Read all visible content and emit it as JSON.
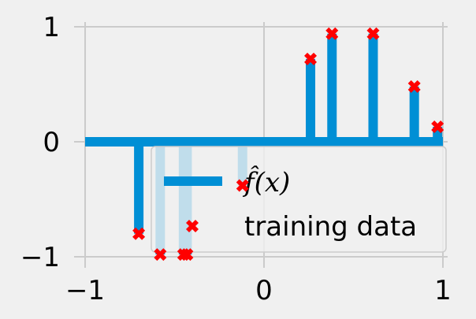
{
  "chart_data": {
    "type": "stem",
    "x_ticks": [
      "−1",
      "0",
      "1"
    ],
    "y_ticks": [
      "−1",
      "0",
      "1"
    ],
    "xlim": [
      -1,
      1
    ],
    "ylim": [
      -1,
      1
    ],
    "grid": true,
    "legend_placement": "lower-right",
    "colors": {
      "background": "#f0f0f0",
      "grid": "#cbcbcb",
      "stem": "#008fd5",
      "marker": "#ff0000"
    },
    "series": [
      {
        "name": "f̂(x)",
        "legend_math": "f̂(x)",
        "kind": "stem",
        "points": [
          {
            "x": -0.7,
            "y": -0.8
          },
          {
            "x": -0.58,
            "y": -0.98
          },
          {
            "x": -0.45,
            "y": -0.98
          },
          {
            "x": -0.43,
            "y": -0.98
          },
          {
            "x": -0.12,
            "y": -0.38
          },
          {
            "x": 0.26,
            "y": 0.72
          },
          {
            "x": 0.38,
            "y": 0.94
          },
          {
            "x": 0.61,
            "y": 0.94
          },
          {
            "x": 0.84,
            "y": 0.48
          },
          {
            "x": 0.97,
            "y": 0.13
          }
        ]
      },
      {
        "name": "training data",
        "kind": "scatter",
        "marker": "X",
        "points": [
          {
            "x": -0.7,
            "y": -0.8
          },
          {
            "x": -0.58,
            "y": -0.98
          },
          {
            "x": -0.45,
            "y": -0.98
          },
          {
            "x": -0.43,
            "y": -0.98
          },
          {
            "x": -0.12,
            "y": -0.38
          },
          {
            "x": 0.26,
            "y": 0.72
          },
          {
            "x": 0.38,
            "y": 0.94
          },
          {
            "x": 0.61,
            "y": 0.94
          },
          {
            "x": 0.84,
            "y": 0.48
          },
          {
            "x": 0.97,
            "y": 0.13
          }
        ]
      }
    ]
  }
}
